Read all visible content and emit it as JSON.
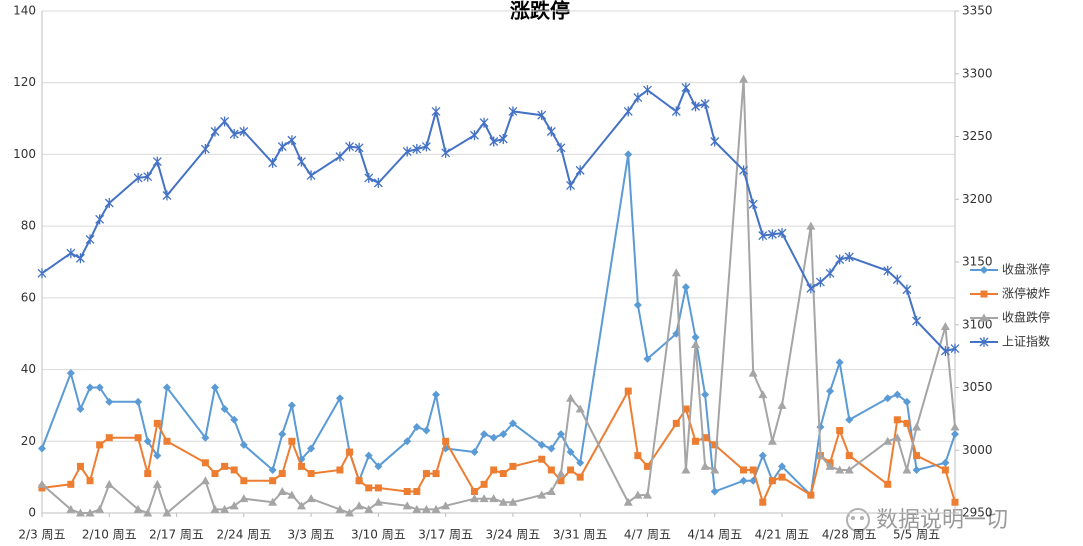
{
  "chart_data": {
    "type": "line",
    "title": "涨跌停",
    "watermark": "数据说明一切",
    "x": [
      "2/3",
      "2/6",
      "2/7",
      "2/8",
      "2/9",
      "2/10",
      "2/13",
      "2/14",
      "2/15",
      "2/16",
      "2/20",
      "2/21",
      "2/22",
      "2/23",
      "2/24",
      "2/27",
      "2/28",
      "3/1",
      "3/2",
      "3/3",
      "3/6",
      "3/7",
      "3/8",
      "3/9",
      "3/10",
      "3/13",
      "3/14",
      "3/15",
      "3/16",
      "3/17",
      "3/20",
      "3/21",
      "3/22",
      "3/23",
      "3/24",
      "3/27",
      "3/28",
      "3/29",
      "3/30",
      "3/31",
      "4/5",
      "4/6",
      "4/7",
      "4/10",
      "4/11",
      "4/12",
      "4/13",
      "4/14",
      "4/17",
      "4/18",
      "4/19",
      "4/20",
      "4/21",
      "4/24",
      "4/25",
      "4/26",
      "4/27",
      "4/28",
      "5/2",
      "5/3",
      "5/4",
      "5/5",
      "5/8",
      "5/9"
    ],
    "xlim": [
      "2/3",
      "5/9"
    ],
    "xticks": [
      {
        "value": "2/3",
        "label": "2/3 周五"
      },
      {
        "value": "2/10",
        "label": "2/10 周五"
      },
      {
        "value": "2/17",
        "label": "2/17 周五"
      },
      {
        "value": "2/24",
        "label": "2/24 周五"
      },
      {
        "value": "3/3",
        "label": "3/3 周五"
      },
      {
        "value": "3/10",
        "label": "3/10 周五"
      },
      {
        "value": "3/17",
        "label": "3/17 周五"
      },
      {
        "value": "3/24",
        "label": "3/24 周五"
      },
      {
        "value": "3/31",
        "label": "3/31 周五"
      },
      {
        "value": "4/7",
        "label": "4/7 周五"
      },
      {
        "value": "4/14",
        "label": "4/14 周五"
      },
      {
        "value": "4/21",
        "label": "4/21 周五"
      },
      {
        "value": "4/28",
        "label": "4/28 周五"
      },
      {
        "value": "5/5",
        "label": "5/5 周五"
      }
    ],
    "ylim": [
      0,
      140
    ],
    "yticks": [
      0,
      20,
      40,
      60,
      80,
      100,
      120,
      140
    ],
    "y2lim": [
      2950,
      3350
    ],
    "y2ticks": [
      2950,
      3000,
      3050,
      3100,
      3150,
      3200,
      3250,
      3300,
      3350
    ],
    "grid": true,
    "legend": "right",
    "series": [
      {
        "name": "收盘涨停",
        "color": "#5b9bd5",
        "marker": "diamond",
        "values": [
          18,
          39,
          29,
          35,
          35,
          31,
          31,
          20,
          16,
          35,
          21,
          35,
          29,
          26,
          19,
          12,
          22,
          30,
          15,
          18,
          32,
          17,
          9,
          16,
          13,
          20,
          24,
          23,
          33,
          18,
          17,
          22,
          21,
          22,
          25,
          19,
          18,
          22,
          17,
          14,
          100,
          58,
          43,
          50,
          63,
          49,
          33,
          6,
          9,
          9,
          16,
          9,
          13,
          5,
          24,
          34,
          42,
          26,
          32,
          33,
          31,
          12,
          14,
          22
        ]
      },
      {
        "name": "涨停被炸",
        "color": "#ed7d31",
        "marker": "square",
        "values": [
          7,
          8,
          13,
          9,
          19,
          21,
          21,
          11,
          25,
          20,
          14,
          11,
          13,
          12,
          9,
          9,
          11,
          20,
          13,
          11,
          12,
          17,
          9,
          7,
          7,
          6,
          6,
          11,
          11,
          20,
          6,
          8,
          12,
          11,
          13,
          15,
          12,
          9,
          12,
          10,
          34,
          16,
          13,
          25,
          29,
          20,
          21,
          19,
          12,
          12,
          3,
          9,
          10,
          5,
          16,
          14,
          23,
          16,
          8,
          26,
          25,
          16,
          12,
          3
        ]
      },
      {
        "name": "收盘跌停",
        "color": "#a5a5a5",
        "marker": "triangle",
        "values": [
          8,
          1,
          0,
          0,
          1,
          8,
          1,
          0,
          8,
          0,
          9,
          1,
          1,
          2,
          4,
          3,
          6,
          5,
          2,
          4,
          1,
          0,
          2,
          1,
          3,
          2,
          1,
          1,
          1,
          2,
          4,
          4,
          4,
          3,
          3,
          5,
          6,
          11,
          32,
          29,
          3,
          5,
          5,
          67,
          12,
          47,
          13,
          12,
          121,
          39,
          33,
          20,
          30,
          80,
          16,
          13,
          12,
          12,
          20,
          21,
          12,
          24,
          52,
          24
        ]
      },
      {
        "name": "上证指数",
        "color": "#4472c4",
        "marker": "star",
        "axis": "y2",
        "values": [
          3141,
          3157,
          3153,
          3168,
          3184,
          3197,
          3217,
          3218,
          3230,
          3203,
          3240,
          3254,
          3262,
          3252,
          3254,
          3229,
          3242,
          3247,
          3230,
          3219,
          3234,
          3242,
          3241,
          3217,
          3213,
          3238,
          3240,
          3242,
          3270,
          3237,
          3251,
          3261,
          3246,
          3248,
          3270,
          3267,
          3254,
          3241,
          3211,
          3223,
          3270,
          3281,
          3287,
          3270,
          3289,
          3274,
          3276,
          3246,
          3223,
          3196,
          3171,
          3172,
          3173,
          3129,
          3134,
          3141,
          3152,
          3154,
          3143,
          3136,
          3128,
          3103,
          3079,
          3081
        ]
      }
    ]
  }
}
